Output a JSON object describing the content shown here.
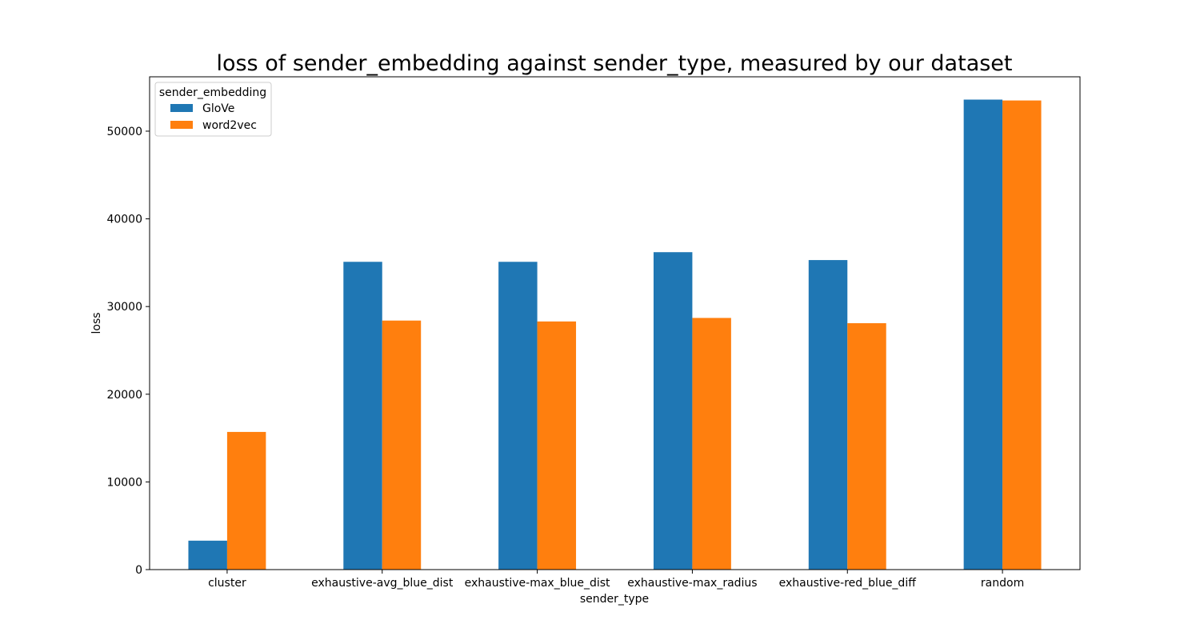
{
  "chart_data": {
    "type": "bar",
    "title": "loss of sender_embedding against sender_type, measured by our dataset",
    "xlabel": "sender_type",
    "ylabel": "loss",
    "categories": [
      "cluster",
      "exhaustive-avg_blue_dist",
      "exhaustive-max_blue_dist",
      "exhaustive-max_radius",
      "exhaustive-red_blue_diff",
      "random"
    ],
    "series": [
      {
        "name": "GloVe",
        "color": "#1f77b4",
        "values": [
          3300,
          35100,
          35100,
          36200,
          35300,
          53600
        ]
      },
      {
        "name": "word2vec",
        "color": "#ff7f0e",
        "values": [
          15700,
          28400,
          28300,
          28700,
          28100,
          53500
        ]
      }
    ],
    "ylim": [
      0,
      56200
    ],
    "yticks": [
      0,
      10000,
      20000,
      30000,
      40000,
      50000
    ],
    "legend": {
      "title": "sender_embedding",
      "placement": "top-left"
    },
    "grid": false
  }
}
